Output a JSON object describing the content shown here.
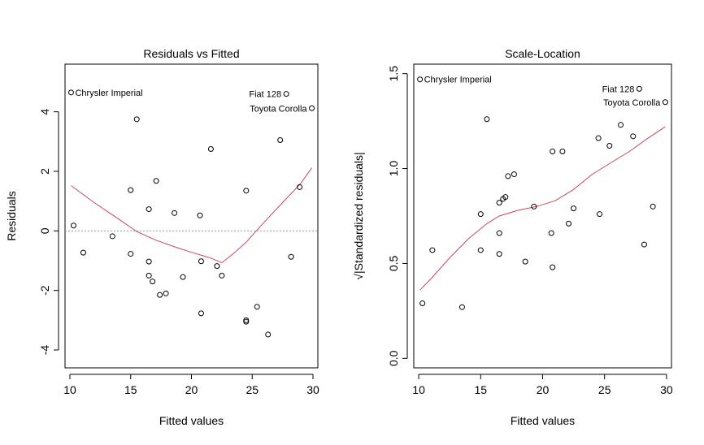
{
  "chart_data": [
    {
      "type": "scatter",
      "title": "Residuals vs Fitted",
      "xlabel": "Fitted values",
      "ylabel": "Residuals",
      "xlim": [
        9.6,
        30.4
      ],
      "ylim": [
        -4.6,
        5.6
      ],
      "xticks": [
        10,
        15,
        20,
        25,
        30
      ],
      "yticks": [
        -4,
        -2,
        0,
        2,
        4
      ],
      "reference_line_y": 0,
      "grid": false,
      "points": [
        [
          10.1,
          4.65
        ],
        [
          10.3,
          0.18
        ],
        [
          11.1,
          -0.73
        ],
        [
          13.5,
          -0.18
        ],
        [
          15.0,
          1.37
        ],
        [
          15.0,
          -0.77
        ],
        [
          15.5,
          3.75
        ],
        [
          16.5,
          0.73
        ],
        [
          16.5,
          -1.03
        ],
        [
          16.5,
          -1.5
        ],
        [
          16.8,
          -1.7
        ],
        [
          17.1,
          1.68
        ],
        [
          17.4,
          -2.15
        ],
        [
          17.9,
          -2.1
        ],
        [
          18.6,
          0.6
        ],
        [
          19.3,
          -1.55
        ],
        [
          20.7,
          0.52
        ],
        [
          20.8,
          -1.02
        ],
        [
          20.8,
          -2.77
        ],
        [
          21.6,
          2.75
        ],
        [
          22.1,
          -1.18
        ],
        [
          22.5,
          -1.5
        ],
        [
          24.5,
          1.35
        ],
        [
          24.5,
          -3.0
        ],
        [
          24.5,
          -3.05
        ],
        [
          25.4,
          -2.55
        ],
        [
          26.3,
          -3.48
        ],
        [
          27.3,
          3.05
        ],
        [
          27.8,
          4.6
        ],
        [
          28.2,
          -0.87
        ],
        [
          28.9,
          1.47
        ],
        [
          29.9,
          4.12
        ]
      ],
      "smoother": [
        [
          10.1,
          1.52
        ],
        [
          12.0,
          0.95
        ],
        [
          14.0,
          0.4
        ],
        [
          15.5,
          -0.02
        ],
        [
          17.0,
          -0.3
        ],
        [
          18.5,
          -0.52
        ],
        [
          20.0,
          -0.72
        ],
        [
          21.5,
          -0.9
        ],
        [
          22.5,
          -1.07
        ],
        [
          23.5,
          -0.75
        ],
        [
          24.5,
          -0.38
        ],
        [
          26.0,
          0.3
        ],
        [
          27.5,
          0.95
        ],
        [
          29.0,
          1.6
        ],
        [
          29.9,
          2.12
        ]
      ],
      "annotations": [
        {
          "label": "Chrysler Imperial",
          "x": 10.1,
          "y": 4.65,
          "side": "right"
        },
        {
          "label": "Fiat 128",
          "x": 27.8,
          "y": 4.6,
          "side": "left"
        },
        {
          "label": "Toyota Corolla",
          "x": 29.9,
          "y": 4.12,
          "side": "left"
        }
      ]
    },
    {
      "type": "scatter",
      "title": "Scale-Location",
      "xlabel": "Fitted values",
      "ylabel": "√|Standardized residuals|",
      "xlim": [
        9.6,
        30.4
      ],
      "ylim": [
        -0.05,
        1.55
      ],
      "xticks": [
        10,
        15,
        20,
        25,
        30
      ],
      "yticks": [
        0.0,
        0.5,
        1.0,
        1.5
      ],
      "ytick_labels": [
        "0.0",
        "0.5",
        "1.0",
        "1.5"
      ],
      "grid": false,
      "points": [
        [
          10.1,
          1.47
        ],
        [
          10.3,
          0.29
        ],
        [
          11.1,
          0.57
        ],
        [
          13.5,
          0.27
        ],
        [
          15.0,
          0.76
        ],
        [
          15.0,
          0.57
        ],
        [
          15.5,
          1.26
        ],
        [
          16.5,
          0.82
        ],
        [
          16.5,
          0.55
        ],
        [
          16.5,
          0.66
        ],
        [
          16.8,
          0.84
        ],
        [
          17.0,
          0.85
        ],
        [
          17.2,
          0.96
        ],
        [
          17.7,
          0.97
        ],
        [
          18.6,
          0.51
        ],
        [
          19.3,
          0.8
        ],
        [
          20.7,
          0.66
        ],
        [
          20.8,
          0.48
        ],
        [
          20.8,
          1.09
        ],
        [
          21.6,
          1.09
        ],
        [
          22.1,
          0.71
        ],
        [
          22.5,
          0.79
        ],
        [
          24.5,
          1.16
        ],
        [
          24.6,
          0.76
        ],
        [
          25.4,
          1.12
        ],
        [
          26.3,
          1.23
        ],
        [
          27.3,
          1.17
        ],
        [
          27.8,
          1.42
        ],
        [
          28.2,
          0.6
        ],
        [
          28.9,
          0.8
        ],
        [
          29.9,
          1.35
        ]
      ],
      "smoother": [
        [
          10.1,
          0.36
        ],
        [
          11.0,
          0.42
        ],
        [
          12.5,
          0.53
        ],
        [
          14.0,
          0.63
        ],
        [
          15.5,
          0.71
        ],
        [
          16.5,
          0.75
        ],
        [
          18.0,
          0.78
        ],
        [
          19.5,
          0.8
        ],
        [
          21.0,
          0.83
        ],
        [
          22.5,
          0.89
        ],
        [
          24.0,
          0.97
        ],
        [
          25.5,
          1.03
        ],
        [
          27.0,
          1.09
        ],
        [
          28.5,
          1.16
        ],
        [
          29.9,
          1.22
        ]
      ],
      "annotations": [
        {
          "label": "Chrysler Imperial",
          "x": 10.1,
          "y": 1.47,
          "side": "right"
        },
        {
          "label": "Fiat 128",
          "x": 27.8,
          "y": 1.42,
          "side": "left"
        },
        {
          "label": "Toyota Corolla",
          "x": 29.9,
          "y": 1.35,
          "side": "left"
        }
      ]
    }
  ]
}
